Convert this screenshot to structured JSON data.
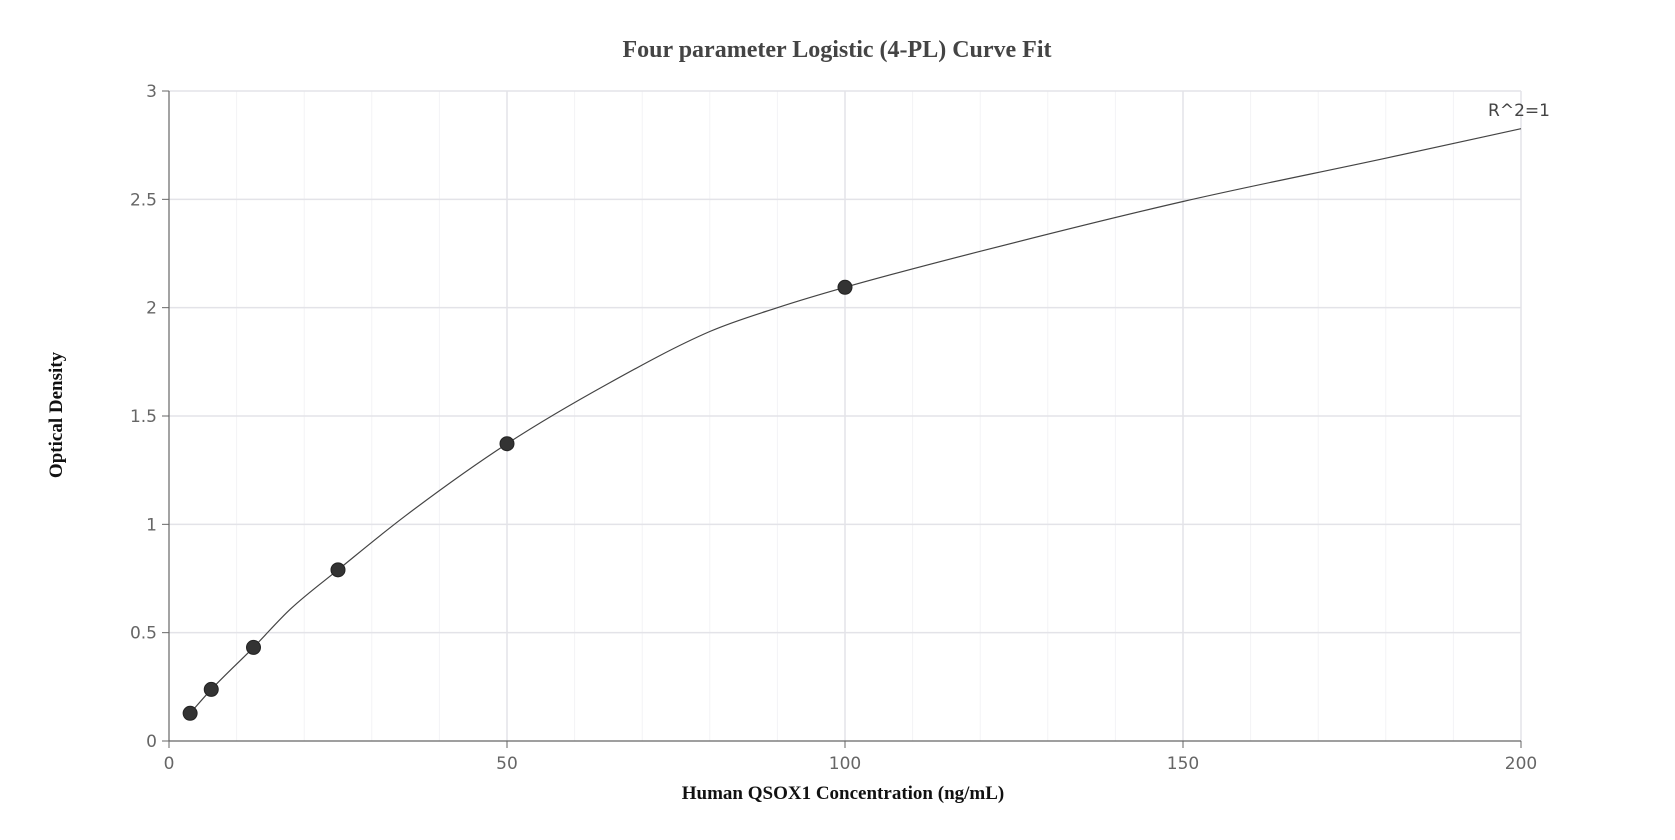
{
  "chart_data": {
    "type": "scatter",
    "title": "Four parameter Logistic (4-PL) Curve Fit",
    "xlabel": "Human QSOX1 Concentration (ng/mL)",
    "ylabel": "Optical Density",
    "xlim": [
      0,
      200
    ],
    "ylim": [
      0,
      3
    ],
    "x_ticks": [
      0,
      50,
      100,
      150,
      200
    ],
    "x_tick_labels": [
      "0",
      "50",
      "100",
      "150",
      "200"
    ],
    "y_ticks": [
      0,
      0.5,
      1,
      1.5,
      2,
      2.5,
      3
    ],
    "y_tick_labels": [
      "0",
      "0.5",
      "1",
      "1.5",
      "2",
      "2.5",
      "3"
    ],
    "grid": true,
    "annotation": "R^2=1",
    "points": [
      {
        "x": 3.125,
        "y": 0.128
      },
      {
        "x": 6.25,
        "y": 0.238
      },
      {
        "x": 12.5,
        "y": 0.432
      },
      {
        "x": 25,
        "y": 0.79
      },
      {
        "x": 50,
        "y": 1.372
      },
      {
        "x": 100,
        "y": 2.094
      }
    ],
    "fit_curve": {
      "model": "4-PL",
      "x": [
        3.125,
        6.25,
        12.5,
        18,
        25,
        35,
        50,
        65,
        80,
        90,
        100,
        120,
        150,
        180,
        200
      ],
      "y": [
        0.128,
        0.238,
        0.432,
        0.61,
        0.79,
        1.04,
        1.372,
        1.65,
        1.89,
        2.0,
        2.094,
        2.26,
        2.49,
        2.69,
        2.826
      ]
    },
    "colors": {
      "points": "#333333",
      "curve": "#444444",
      "grid": "#e3e3e8"
    }
  }
}
